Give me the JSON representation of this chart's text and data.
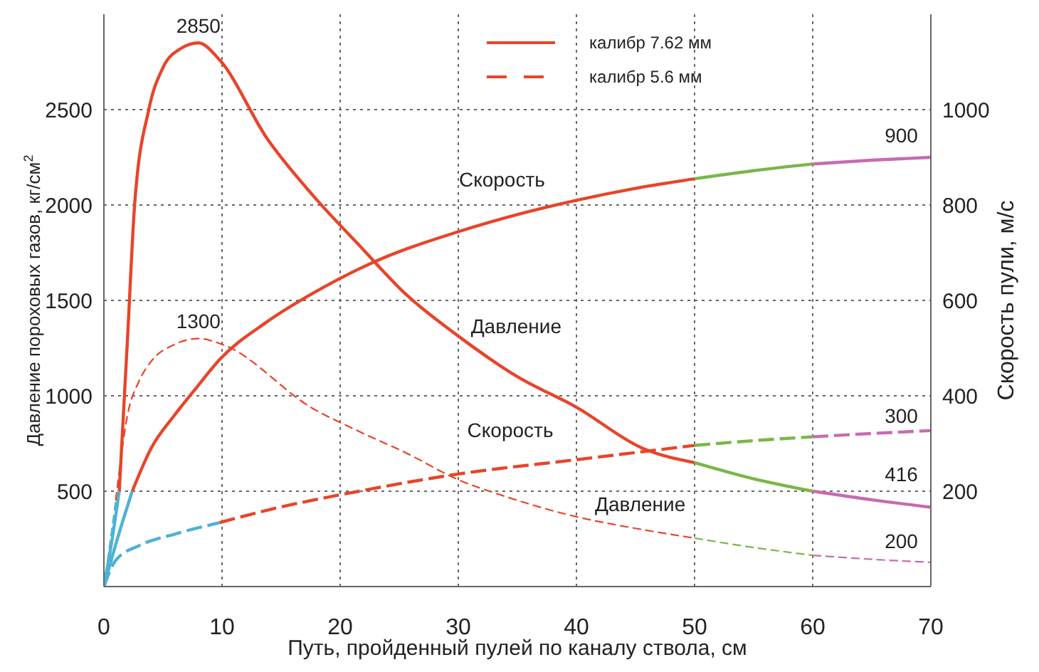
{
  "chart_data": {
    "type": "line",
    "xlabel": "Путь, пройденный пулей по каналу ствола, см",
    "ylabel": "Давление пороховых газов, кг/см$^{2}$",
    "y2label": "Скорость пули, м/с",
    "xlim": [
      0,
      70
    ],
    "xticks": [
      0,
      10,
      20,
      30,
      40,
      50,
      60,
      70
    ],
    "ylim": [
      0,
      3000
    ],
    "yticks": [
      500,
      1000,
      1500,
      2000,
      2500
    ],
    "y2lim": [
      0,
      1200
    ],
    "y2ticks": [
      200,
      400,
      600,
      800,
      1000
    ],
    "grid": true,
    "legend": "top",
    "marker": "none",
    "series": [
      {
        "name": "калибр 7.62 мм",
        "color": "#e8442a",
        "line_style": "solid",
        "x": [
          1.3,
          2,
          2.6,
          3.8,
          5,
          6.5,
          8,
          9.8,
          13.8,
          17.7,
          21.6,
          25.6,
          30,
          35,
          40,
          45.6,
          50
        ],
        "values": [
          500,
          1300,
          2000,
          2500,
          2720,
          2820,
          2850,
          2760,
          2350,
          2050,
          1790,
          1530,
          1313,
          1100,
          940,
          725,
          650
        ]
      },
      {
        "color": "#4db3d4",
        "line_style": "solid",
        "x": [
          0,
          0.7,
          1.3
        ],
        "values": [
          0,
          250,
          500
        ]
      },
      {
        "color": "#7ab648",
        "line_style": "solid",
        "x": [
          50,
          55,
          60
        ],
        "values": [
          650,
          565,
          500
        ]
      },
      {
        "color": "#c66bb0",
        "line_style": "solid",
        "x": [
          60,
          65,
          70
        ],
        "values": [
          500,
          455,
          416
        ]
      },
      {
        "name": "калибр 5.6 мм",
        "color": "#e8442a",
        "line_style": "dashed",
        "x": [
          1,
          2,
          3,
          4,
          6,
          8,
          10,
          17.7,
          21.6,
          25.6,
          30,
          33.7,
          40,
          45,
          50
        ],
        "values": [
          450,
          900,
          1080,
          1180,
          1270,
          1300,
          1270,
          933,
          813,
          700,
          560,
          478,
          366,
          305,
          254
        ]
      },
      {
        "color": "#4db3d4",
        "line_style": "dashed",
        "x": [
          0,
          0.5,
          1
        ],
        "values": [
          0,
          220,
          450
        ]
      },
      {
        "color": "#7ab648",
        "line_style": "dashed",
        "x": [
          50,
          55,
          60
        ],
        "values": [
          254,
          205,
          164
        ]
      },
      {
        "color": "#c66bb0",
        "line_style": "dashed",
        "x": [
          60,
          65,
          70
        ],
        "values": [
          164,
          143,
          127
        ]
      },
      {
        "color": "#e8442a",
        "line_style": "solid",
        "axis": "y2",
        "x": [
          2.4,
          4,
          6,
          7.8,
          9.8,
          13.8,
          17.7,
          22.9,
          30,
          35,
          40,
          45,
          50
        ],
        "values": [
          200,
          290,
          360,
          416,
          476,
          555,
          615,
          681,
          744,
          780,
          810,
          835,
          855
        ]
      },
      {
        "color": "#4db3d4",
        "line_style": "solid",
        "axis": "y2",
        "x": [
          0,
          1.2,
          2.4
        ],
        "values": [
          0,
          105,
          200
        ]
      },
      {
        "color": "#7ab648",
        "line_style": "solid",
        "axis": "y2",
        "x": [
          50,
          55,
          60
        ],
        "values": [
          855,
          872,
          886
        ]
      },
      {
        "color": "#c66bb0",
        "line_style": "solid",
        "axis": "y2",
        "x": [
          60,
          65,
          70
        ],
        "values": [
          886,
          894,
          900
        ]
      },
      {
        "color": "#e8442a",
        "line_style": "dashed",
        "axis": "y2",
        "x": [
          9.8,
          13.8,
          21.6,
          30,
          40,
          50
        ],
        "values": [
          134,
          160,
          200,
          236,
          266,
          296
        ]
      },
      {
        "color": "#4db3d4",
        "line_style": "dashed",
        "axis": "y2",
        "x": [
          0,
          1,
          3,
          6,
          9.8
        ],
        "values": [
          0,
          55,
          86,
          110,
          134
        ]
      },
      {
        "color": "#7ab648",
        "line_style": "dashed",
        "axis": "y2",
        "x": [
          50,
          55,
          60
        ],
        "values": [
          296,
          306,
          314
        ]
      },
      {
        "color": "#c66bb0",
        "line_style": "dashed",
        "axis": "y2",
        "x": [
          60,
          65,
          70
        ],
        "values": [
          314,
          321,
          327
        ]
      }
    ],
    "annotations": [
      "2850",
      "1300",
      "Скорость",
      "Давление",
      "Скорость",
      "Давление",
      "900",
      "300",
      "416",
      "200"
    ]
  }
}
